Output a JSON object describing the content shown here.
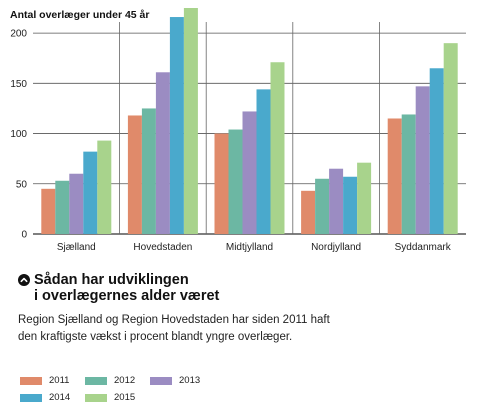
{
  "chart_data": {
    "type": "bar",
    "ylabel": "Antal overlæger under 45 år",
    "xlabel": "",
    "ylim": [
      0,
      225
    ],
    "yticks": [
      0,
      50,
      100,
      150,
      200
    ],
    "grid": true,
    "categories": [
      "Sjælland",
      "Hovedstaden",
      "Midtjylland",
      "Nordjylland",
      "Syddanmark"
    ],
    "series": [
      {
        "name": "2011",
        "color": "#e08a6a",
        "values": [
          45,
          118,
          100,
          43,
          115
        ]
      },
      {
        "name": "2012",
        "color": "#6cb7a3",
        "values": [
          53,
          125,
          104,
          55,
          119
        ]
      },
      {
        "name": "2013",
        "color": "#9b8cc2",
        "values": [
          60,
          161,
          122,
          65,
          147
        ]
      },
      {
        "name": "2014",
        "color": "#4aa9cc",
        "values": [
          82,
          216,
          144,
          57,
          165
        ]
      },
      {
        "name": "2015",
        "color": "#a8d38c",
        "values": [
          93,
          225,
          171,
          71,
          190
        ]
      }
    ]
  },
  "info": {
    "icon": "chevron-up-circle-icon",
    "heading_line1": "Sådan har udviklingen",
    "heading_line2": "i overlægernes alder været",
    "text": "Region Sjælland og Region Hovedstaden har siden 2011 haft den kraftigste vækst i procent blandt yngre overlæger."
  }
}
